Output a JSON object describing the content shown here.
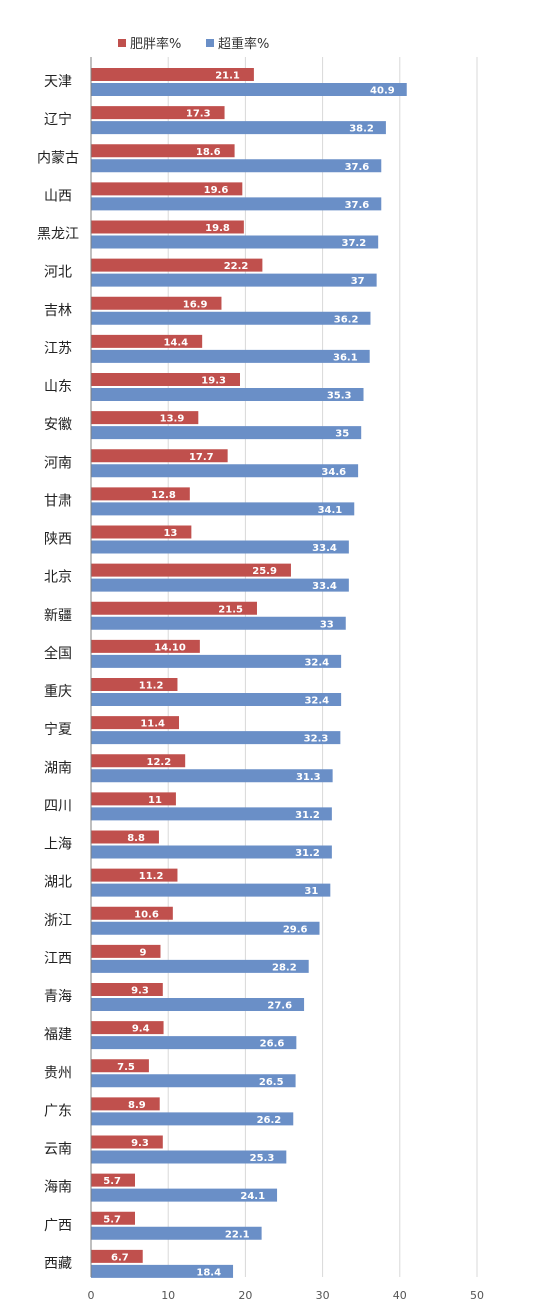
{
  "chart_data": {
    "type": "bar",
    "orientation": "horizontal",
    "categories": [
      "天津",
      "辽宁",
      "内蒙古",
      "山西",
      "黑龙江",
      "河北",
      "吉林",
      "江苏",
      "山东",
      "安徽",
      "河南",
      "甘肃",
      "陕西",
      "北京",
      "新疆",
      "全国",
      "重庆",
      "宁夏",
      "湖南",
      "四川",
      "上海",
      "湖北",
      "浙江",
      "江西",
      "青海",
      "福建",
      "贵州",
      "广东",
      "云南",
      "海南",
      "广西",
      "西藏"
    ],
    "series": [
      {
        "name": "肥胖率%",
        "color": "#c0504d",
        "values": [
          21.1,
          17.3,
          18.6,
          19.6,
          19.8,
          22.2,
          16.9,
          14.4,
          19.3,
          13.9,
          17.7,
          12.8,
          13,
          25.9,
          21.5,
          14.1,
          11.2,
          11.4,
          12.2,
          11,
          8.8,
          11.2,
          10.6,
          9,
          9.3,
          9.4,
          7.5,
          8.9,
          9.3,
          5.7,
          5.7,
          6.7
        ],
        "labels": [
          "21.1",
          "17.3",
          "18.6",
          "19.6",
          "19.8",
          "22.2",
          "16.9",
          "14.4",
          "19.3",
          "13.9",
          "17.7",
          "12.8",
          "13",
          "25.9",
          "21.5",
          "14.10",
          "11.2",
          "11.4",
          "12.2",
          "11",
          "8.8",
          "11.2",
          "10.6",
          "9",
          "9.3",
          "9.4",
          "7.5",
          "8.9",
          "9.3",
          "5.7",
          "5.7",
          "6.7"
        ]
      },
      {
        "name": "超重率%",
        "color": "#6a8fc7",
        "values": [
          40.9,
          38.2,
          37.6,
          37.6,
          37.2,
          37,
          36.2,
          36.1,
          35.3,
          35,
          34.6,
          34.1,
          33.4,
          33.4,
          33,
          32.4,
          32.4,
          32.3,
          31.3,
          31.2,
          31.2,
          31,
          29.6,
          28.2,
          27.6,
          26.6,
          26.5,
          26.2,
          25.3,
          24.1,
          22.1,
          18.4
        ],
        "labels": [
          "40.9",
          "38.2",
          "37.6",
          "37.6",
          "37.2",
          "37",
          "36.2",
          "36.1",
          "35.3",
          "35",
          "34.6",
          "34.1",
          "33.4",
          "33.4",
          "33",
          "32.4",
          "32.4",
          "32.3",
          "31.3",
          "31.2",
          "31.2",
          "31",
          "29.6",
          "28.2",
          "27.6",
          "26.6",
          "26.5",
          "26.2",
          "25.3",
          "24.1",
          "22.1",
          "18.4"
        ]
      }
    ],
    "xlim": [
      0,
      50
    ],
    "xticks": [
      "0",
      "10",
      "20",
      "30",
      "40",
      "50"
    ],
    "title": "",
    "xlabel": "",
    "ylabel": "",
    "grid": "vertical",
    "legend_position": "top-left"
  }
}
